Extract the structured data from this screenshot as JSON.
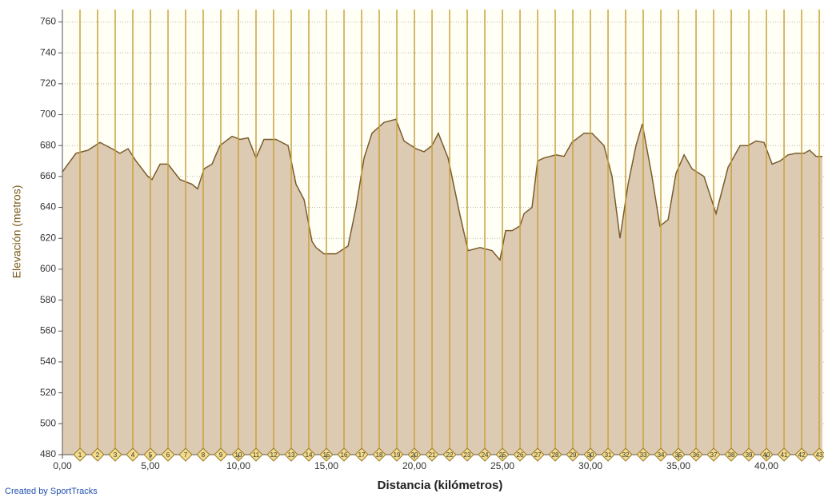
{
  "chart_data": {
    "type": "area",
    "y_label": "Elevación (metros)",
    "x_label": "Distancia (kilómetros)",
    "footer": "Created by SportTracks",
    "x": [
      0,
      0.77,
      1.45,
      2.14,
      2.82,
      3.27,
      3.73,
      4.18,
      4.86,
      5.09,
      5.55,
      6.0,
      6.68,
      7.36,
      7.68,
      8.05,
      8.5,
      8.95,
      9.64,
      10.09,
      10.55,
      11.0,
      11.45,
      12.14,
      12.82,
      13.27,
      13.73,
      14.18,
      14.41,
      14.86,
      15.55,
      16.23,
      16.68,
      17.14,
      17.59,
      18.27,
      18.95,
      19.41,
      20.09,
      20.55,
      21.0,
      21.36,
      21.91,
      22.59,
      23.05,
      23.73,
      24.41,
      24.86,
      25.18,
      25.55,
      26.0,
      26.23,
      26.68,
      27.0,
      27.36,
      28.05,
      28.5,
      28.95,
      29.64,
      30.09,
      30.77,
      31.23,
      31.68,
      32.14,
      32.59,
      32.95,
      33.5,
      33.95,
      34.41,
      34.86,
      35.32,
      35.77,
      36.45,
      37.14,
      37.82,
      38.5,
      38.95,
      39.41,
      39.86,
      40.32,
      40.77,
      41.23,
      41.68,
      42.14,
      42.45,
      42.82,
      43.18
    ],
    "series": [
      {
        "color": "#7a5c2a",
        "values": [
          663,
          675,
          677,
          682,
          678,
          675,
          678,
          670,
          660,
          658,
          668,
          668,
          658,
          655,
          652,
          665,
          668,
          680,
          686,
          684,
          685,
          672,
          684,
          684,
          680,
          655,
          645,
          618,
          614,
          610,
          610,
          615,
          640,
          672,
          688,
          695,
          697,
          683,
          678,
          676,
          680,
          688,
          672,
          635,
          612,
          614,
          612,
          606,
          625,
          625,
          628,
          636,
          640,
          670,
          672,
          674,
          673,
          682,
          688,
          688,
          680,
          660,
          620,
          655,
          680,
          694,
          660,
          628,
          632,
          662,
          674,
          665,
          660,
          636,
          666,
          680,
          680,
          683,
          682,
          668,
          670,
          674,
          675,
          675,
          677,
          673,
          673
        ]
      }
    ],
    "markers": [
      1,
      2,
      3,
      4,
      5,
      6,
      7,
      8,
      9,
      10,
      11,
      12,
      13,
      14,
      15,
      16,
      17,
      18,
      19,
      20,
      21,
      22,
      23,
      24,
      25,
      26,
      27,
      28,
      29,
      30,
      31,
      32,
      33,
      34,
      35,
      36,
      37,
      38,
      39,
      40,
      41,
      42,
      43
    ],
    "xlim": [
      0,
      43.27
    ],
    "ylim": [
      480,
      768
    ],
    "xticks": [
      {
        "value": 0,
        "label": "0,00"
      },
      {
        "value": 5,
        "label": "5,00"
      },
      {
        "value": 10,
        "label": "10,00"
      },
      {
        "value": 15,
        "label": "15,00"
      },
      {
        "value": 20,
        "label": "20,00"
      },
      {
        "value": 25,
        "label": "25,00"
      },
      {
        "value": 30,
        "label": "30,00"
      },
      {
        "value": 35,
        "label": "35,00"
      },
      {
        "value": 40,
        "label": "40,00"
      }
    ],
    "yticks": [
      480,
      500,
      520,
      540,
      560,
      580,
      600,
      620,
      640,
      660,
      680,
      700,
      720,
      740,
      760
    ],
    "grid": true
  }
}
